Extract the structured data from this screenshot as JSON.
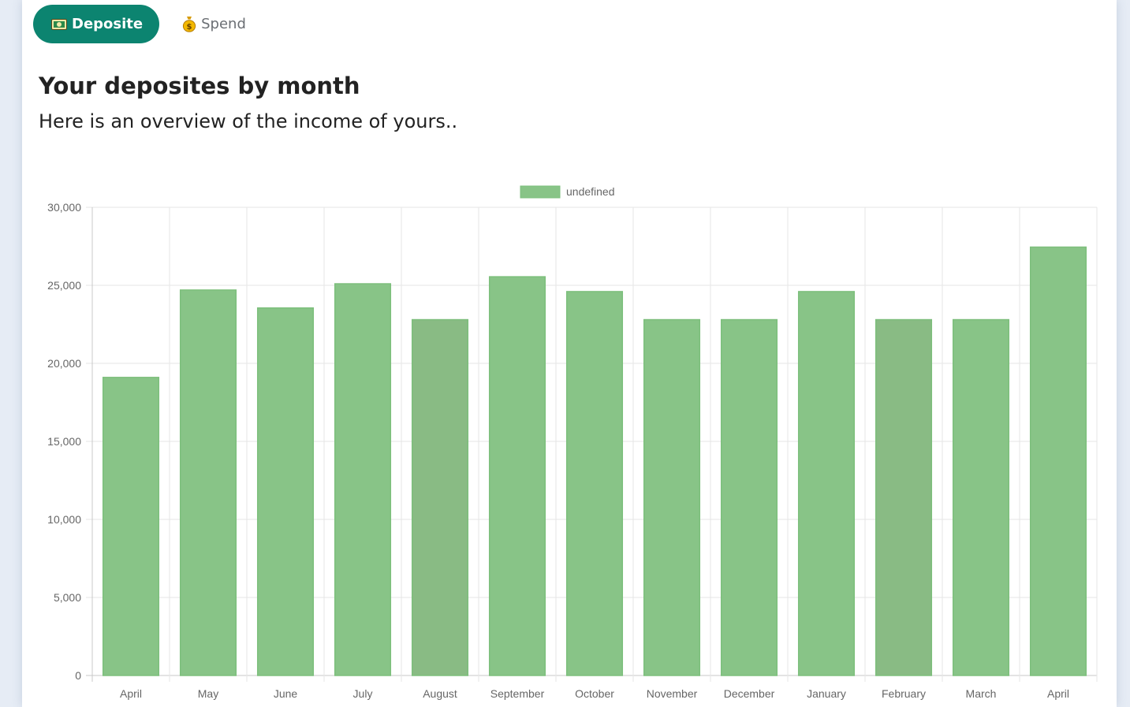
{
  "tabs": [
    {
      "label": "Deposite",
      "icon": "money-bill-icon",
      "active": true
    },
    {
      "label": "Spend",
      "icon": "money-bag-icon",
      "active": false
    }
  ],
  "header": {
    "title": "Your deposites by month",
    "subtitle": "Here is an overview of the income of yours.."
  },
  "colors": {
    "accent": "#0c8470",
    "bar_fill": "#88c487",
    "bar_fill_alt": "#89bb84",
    "bar_border": "#7dbf7c"
  },
  "chart_data": {
    "type": "bar",
    "categories": [
      "April",
      "May",
      "June",
      "July",
      "August",
      "September",
      "October",
      "November",
      "December",
      "January",
      "February",
      "March",
      "April"
    ],
    "series": [
      {
        "name": "undefined",
        "values": [
          19100,
          24700,
          23550,
          25100,
          22800,
          25550,
          24600,
          22800,
          22800,
          24600,
          22800,
          22800,
          27450
        ]
      }
    ],
    "yticks": [
      0,
      5000,
      10000,
      15000,
      20000,
      25000,
      30000
    ],
    "ytick_labels": [
      "0",
      "5,000",
      "10,000",
      "15,000",
      "20,000",
      "25,000",
      "30,000"
    ],
    "ylim": [
      0,
      30000
    ],
    "legend_position": "top-center",
    "grid": true
  }
}
